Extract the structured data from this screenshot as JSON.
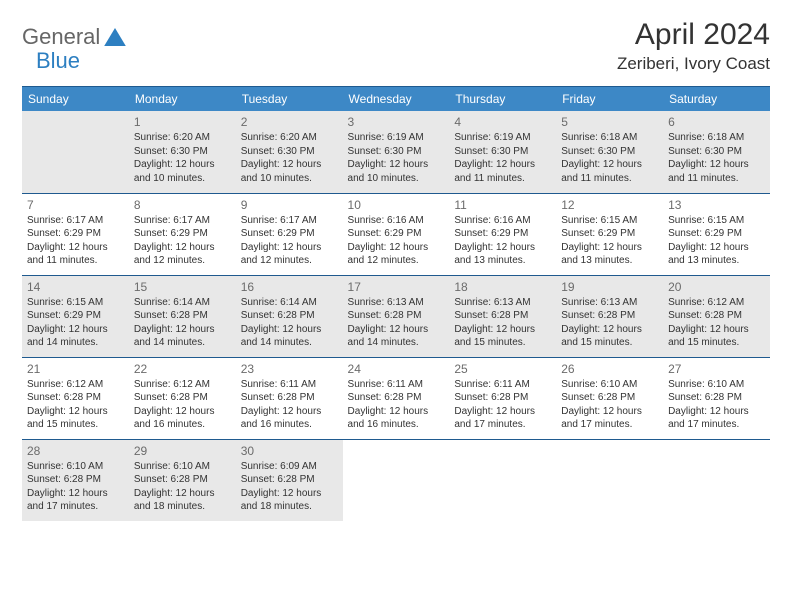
{
  "logo": {
    "text1": "General",
    "text2": "Blue"
  },
  "title": "April 2024",
  "location": "Zeriberi, Ivory Coast",
  "colors": {
    "header_bg": "#3d88c6",
    "header_text": "#ffffff",
    "border": "#1f5a8f",
    "shaded_bg": "#e8e8e8",
    "logo_blue": "#2d7fc1"
  },
  "weekdays": [
    "Sunday",
    "Monday",
    "Tuesday",
    "Wednesday",
    "Thursday",
    "Friday",
    "Saturday"
  ],
  "weeks": [
    [
      {
        "day": "",
        "sunrise": "",
        "sunset": "",
        "daylight": "",
        "shaded": true
      },
      {
        "day": "1",
        "sunrise": "Sunrise: 6:20 AM",
        "sunset": "Sunset: 6:30 PM",
        "daylight": "Daylight: 12 hours and 10 minutes.",
        "shaded": true
      },
      {
        "day": "2",
        "sunrise": "Sunrise: 6:20 AM",
        "sunset": "Sunset: 6:30 PM",
        "daylight": "Daylight: 12 hours and 10 minutes.",
        "shaded": true
      },
      {
        "day": "3",
        "sunrise": "Sunrise: 6:19 AM",
        "sunset": "Sunset: 6:30 PM",
        "daylight": "Daylight: 12 hours and 10 minutes.",
        "shaded": true
      },
      {
        "day": "4",
        "sunrise": "Sunrise: 6:19 AM",
        "sunset": "Sunset: 6:30 PM",
        "daylight": "Daylight: 12 hours and 11 minutes.",
        "shaded": true
      },
      {
        "day": "5",
        "sunrise": "Sunrise: 6:18 AM",
        "sunset": "Sunset: 6:30 PM",
        "daylight": "Daylight: 12 hours and 11 minutes.",
        "shaded": true
      },
      {
        "day": "6",
        "sunrise": "Sunrise: 6:18 AM",
        "sunset": "Sunset: 6:30 PM",
        "daylight": "Daylight: 12 hours and 11 minutes.",
        "shaded": true
      }
    ],
    [
      {
        "day": "7",
        "sunrise": "Sunrise: 6:17 AM",
        "sunset": "Sunset: 6:29 PM",
        "daylight": "Daylight: 12 hours and 11 minutes.",
        "shaded": false
      },
      {
        "day": "8",
        "sunrise": "Sunrise: 6:17 AM",
        "sunset": "Sunset: 6:29 PM",
        "daylight": "Daylight: 12 hours and 12 minutes.",
        "shaded": false
      },
      {
        "day": "9",
        "sunrise": "Sunrise: 6:17 AM",
        "sunset": "Sunset: 6:29 PM",
        "daylight": "Daylight: 12 hours and 12 minutes.",
        "shaded": false
      },
      {
        "day": "10",
        "sunrise": "Sunrise: 6:16 AM",
        "sunset": "Sunset: 6:29 PM",
        "daylight": "Daylight: 12 hours and 12 minutes.",
        "shaded": false
      },
      {
        "day": "11",
        "sunrise": "Sunrise: 6:16 AM",
        "sunset": "Sunset: 6:29 PM",
        "daylight": "Daylight: 12 hours and 13 minutes.",
        "shaded": false
      },
      {
        "day": "12",
        "sunrise": "Sunrise: 6:15 AM",
        "sunset": "Sunset: 6:29 PM",
        "daylight": "Daylight: 12 hours and 13 minutes.",
        "shaded": false
      },
      {
        "day": "13",
        "sunrise": "Sunrise: 6:15 AM",
        "sunset": "Sunset: 6:29 PM",
        "daylight": "Daylight: 12 hours and 13 minutes.",
        "shaded": false
      }
    ],
    [
      {
        "day": "14",
        "sunrise": "Sunrise: 6:15 AM",
        "sunset": "Sunset: 6:29 PM",
        "daylight": "Daylight: 12 hours and 14 minutes.",
        "shaded": true
      },
      {
        "day": "15",
        "sunrise": "Sunrise: 6:14 AM",
        "sunset": "Sunset: 6:28 PM",
        "daylight": "Daylight: 12 hours and 14 minutes.",
        "shaded": true
      },
      {
        "day": "16",
        "sunrise": "Sunrise: 6:14 AM",
        "sunset": "Sunset: 6:28 PM",
        "daylight": "Daylight: 12 hours and 14 minutes.",
        "shaded": true
      },
      {
        "day": "17",
        "sunrise": "Sunrise: 6:13 AM",
        "sunset": "Sunset: 6:28 PM",
        "daylight": "Daylight: 12 hours and 14 minutes.",
        "shaded": true
      },
      {
        "day": "18",
        "sunrise": "Sunrise: 6:13 AM",
        "sunset": "Sunset: 6:28 PM",
        "daylight": "Daylight: 12 hours and 15 minutes.",
        "shaded": true
      },
      {
        "day": "19",
        "sunrise": "Sunrise: 6:13 AM",
        "sunset": "Sunset: 6:28 PM",
        "daylight": "Daylight: 12 hours and 15 minutes.",
        "shaded": true
      },
      {
        "day": "20",
        "sunrise": "Sunrise: 6:12 AM",
        "sunset": "Sunset: 6:28 PM",
        "daylight": "Daylight: 12 hours and 15 minutes.",
        "shaded": true
      }
    ],
    [
      {
        "day": "21",
        "sunrise": "Sunrise: 6:12 AM",
        "sunset": "Sunset: 6:28 PM",
        "daylight": "Daylight: 12 hours and 15 minutes.",
        "shaded": false
      },
      {
        "day": "22",
        "sunrise": "Sunrise: 6:12 AM",
        "sunset": "Sunset: 6:28 PM",
        "daylight": "Daylight: 12 hours and 16 minutes.",
        "shaded": false
      },
      {
        "day": "23",
        "sunrise": "Sunrise: 6:11 AM",
        "sunset": "Sunset: 6:28 PM",
        "daylight": "Daylight: 12 hours and 16 minutes.",
        "shaded": false
      },
      {
        "day": "24",
        "sunrise": "Sunrise: 6:11 AM",
        "sunset": "Sunset: 6:28 PM",
        "daylight": "Daylight: 12 hours and 16 minutes.",
        "shaded": false
      },
      {
        "day": "25",
        "sunrise": "Sunrise: 6:11 AM",
        "sunset": "Sunset: 6:28 PM",
        "daylight": "Daylight: 12 hours and 17 minutes.",
        "shaded": false
      },
      {
        "day": "26",
        "sunrise": "Sunrise: 6:10 AM",
        "sunset": "Sunset: 6:28 PM",
        "daylight": "Daylight: 12 hours and 17 minutes.",
        "shaded": false
      },
      {
        "day": "27",
        "sunrise": "Sunrise: 6:10 AM",
        "sunset": "Sunset: 6:28 PM",
        "daylight": "Daylight: 12 hours and 17 minutes.",
        "shaded": false
      }
    ],
    [
      {
        "day": "28",
        "sunrise": "Sunrise: 6:10 AM",
        "sunset": "Sunset: 6:28 PM",
        "daylight": "Daylight: 12 hours and 17 minutes.",
        "shaded": true
      },
      {
        "day": "29",
        "sunrise": "Sunrise: 6:10 AM",
        "sunset": "Sunset: 6:28 PM",
        "daylight": "Daylight: 12 hours and 18 minutes.",
        "shaded": true
      },
      {
        "day": "30",
        "sunrise": "Sunrise: 6:09 AM",
        "sunset": "Sunset: 6:28 PM",
        "daylight": "Daylight: 12 hours and 18 minutes.",
        "shaded": true
      },
      {
        "day": "",
        "sunrise": "",
        "sunset": "",
        "daylight": "",
        "shaded": false
      },
      {
        "day": "",
        "sunrise": "",
        "sunset": "",
        "daylight": "",
        "shaded": false
      },
      {
        "day": "",
        "sunrise": "",
        "sunset": "",
        "daylight": "",
        "shaded": false
      },
      {
        "day": "",
        "sunrise": "",
        "sunset": "",
        "daylight": "",
        "shaded": false
      }
    ]
  ]
}
